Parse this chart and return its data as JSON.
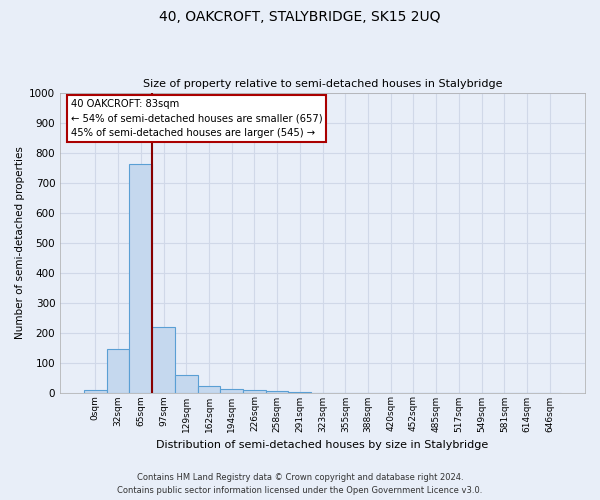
{
  "title": "40, OAKCROFT, STALYBRIDGE, SK15 2UQ",
  "subtitle": "Size of property relative to semi-detached houses in Stalybridge",
  "xlabel": "Distribution of semi-detached houses by size in Stalybridge",
  "ylabel": "Number of semi-detached properties",
  "bar_color": "#c5d8ee",
  "bar_edge_color": "#5a9fd4",
  "background_color": "#e8eef8",
  "grid_color": "#d0d8e8",
  "annotation_box_color": "#aa0000",
  "vline_color": "#880000",
  "annotation_text": "40 OAKCROFT: 83sqm\n← 54% of semi-detached houses are smaller (657)\n45% of semi-detached houses are larger (545) →",
  "footer_line1": "Contains HM Land Registry data © Crown copyright and database right 2024.",
  "footer_line2": "Contains public sector information licensed under the Open Government Licence v3.0.",
  "categories": [
    "0sqm",
    "32sqm",
    "65sqm",
    "97sqm",
    "129sqm",
    "162sqm",
    "194sqm",
    "226sqm",
    "258sqm",
    "291sqm",
    "323sqm",
    "355sqm",
    "388sqm",
    "420sqm",
    "452sqm",
    "485sqm",
    "517sqm",
    "549sqm",
    "581sqm",
    "614sqm",
    "646sqm"
  ],
  "values": [
    8,
    145,
    762,
    218,
    57,
    23,
    13,
    10,
    5,
    1,
    0,
    0,
    0,
    0,
    0,
    0,
    0,
    0,
    0,
    0,
    0
  ],
  "ylim": [
    0,
    1000
  ],
  "yticks": [
    0,
    100,
    200,
    300,
    400,
    500,
    600,
    700,
    800,
    900,
    1000
  ],
  "vline_x": 2.5,
  "figsize": [
    6.0,
    5.0
  ],
  "dpi": 100
}
